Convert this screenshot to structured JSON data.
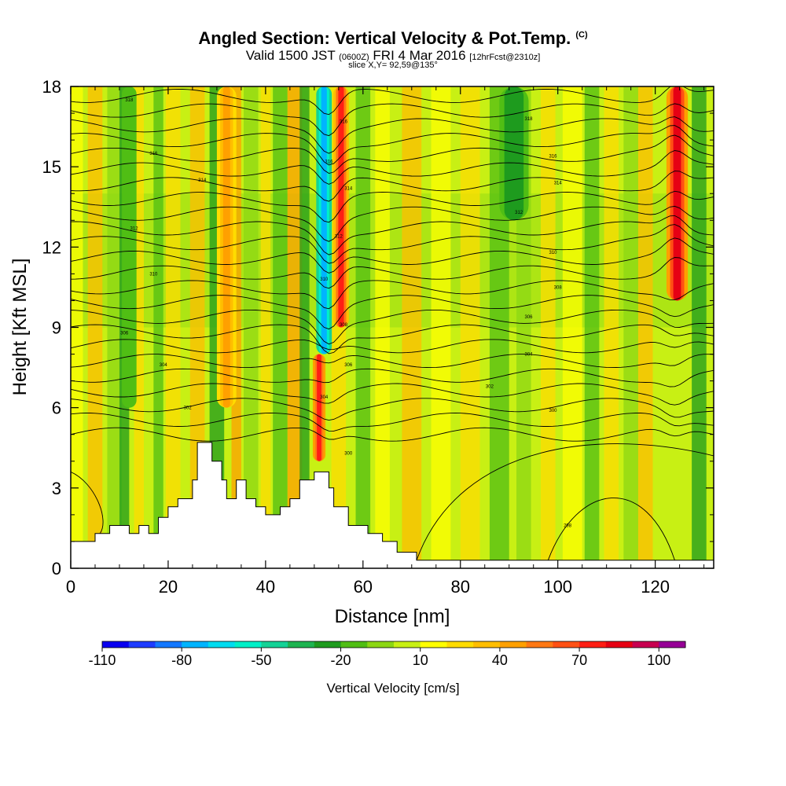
{
  "header": {
    "title_main": "Angled Section: Vertical Velocity & Pot.Temp.",
    "title_mark": "(C)",
    "valid_prefix": "Valid 1500 JST",
    "valid_utc": "(0600Z)",
    "valid_date": "FRI 4 Mar 2016",
    "fcst": "[12hrFcst@2310z]",
    "slice": "slice X,Y= 92,59@135°"
  },
  "chart_data": {
    "type": "heatmap",
    "xlabel": "Distance [nm]",
    "ylabel": "Height [Kft MSL]",
    "xlim": [
      0,
      132
    ],
    "ylim": [
      0,
      18
    ],
    "x_ticks": [
      0,
      20,
      40,
      60,
      80,
      100,
      120
    ],
    "y_ticks": [
      0,
      3,
      6,
      9,
      12,
      15,
      18
    ],
    "colorbar": {
      "label": "Vertical Velocity [cm/s]",
      "ticks": [
        -110,
        -80,
        -50,
        -20,
        10,
        40,
        70,
        100
      ],
      "levels": [
        -110,
        -100,
        -90,
        -80,
        -70,
        -60,
        -50,
        -40,
        -30,
        -20,
        -10,
        0,
        10,
        20,
        30,
        40,
        50,
        60,
        70,
        80,
        90,
        100,
        110
      ],
      "colors": [
        "#0a00f0",
        "#1e3cff",
        "#1478ff",
        "#00b4ff",
        "#00dcf0",
        "#00f0c8",
        "#14d296",
        "#1eb450",
        "#1e9b1e",
        "#50be14",
        "#8cd714",
        "#c8f014",
        "#ffff00",
        "#ffdc00",
        "#ffbe00",
        "#ffa000",
        "#ff7814",
        "#ff5014",
        "#ff1e14",
        "#e60014",
        "#c80050",
        "#960096"
      ]
    },
    "vertical_velocity_columns": [
      {
        "x": 1,
        "w": 3,
        "v": 10
      },
      {
        "x": 5,
        "w": 3,
        "v": 30
      },
      {
        "x": 9,
        "w": 3,
        "v": -10
      },
      {
        "x": 11,
        "w": 2,
        "v": -25
      },
      {
        "x": 14,
        "w": 2,
        "v": 25
      },
      {
        "x": 18,
        "w": 2,
        "v": -20
      },
      {
        "x": 21,
        "w": 3,
        "v": 20
      },
      {
        "x": 26,
        "w": 3,
        "v": 30
      },
      {
        "x": 30,
        "w": 3,
        "v": -30
      },
      {
        "x": 34,
        "w": 2,
        "v": 40
      },
      {
        "x": 37,
        "w": 3,
        "v": -5
      },
      {
        "x": 40,
        "w": 2,
        "v": 25
      },
      {
        "x": 43,
        "w": 3,
        "v": -15
      },
      {
        "x": 46,
        "w": 3,
        "v": 45
      },
      {
        "x": 48,
        "w": 2,
        "v": -25
      },
      {
        "x": 55,
        "w": 3,
        "v": 20
      },
      {
        "x": 60,
        "w": 3,
        "v": -15
      },
      {
        "x": 64,
        "w": 3,
        "v": 10
      },
      {
        "x": 70,
        "w": 4,
        "v": 30
      },
      {
        "x": 76,
        "w": 4,
        "v": 10
      },
      {
        "x": 82,
        "w": 4,
        "v": 20
      },
      {
        "x": 88,
        "w": 4,
        "v": -20
      },
      {
        "x": 93,
        "w": 3,
        "v": -5
      },
      {
        "x": 98,
        "w": 3,
        "v": 20
      },
      {
        "x": 103,
        "w": 4,
        "v": 10
      },
      {
        "x": 107,
        "w": 3,
        "v": -15
      },
      {
        "x": 111,
        "w": 3,
        "v": 25
      },
      {
        "x": 115,
        "w": 3,
        "v": -10
      },
      {
        "x": 118,
        "w": 3,
        "v": 30
      },
      {
        "x": 129,
        "w": 3,
        "v": -25
      }
    ],
    "vertical_velocity_features": [
      {
        "x_center": 52,
        "half_width": 1.6,
        "y_from": 8,
        "y_to": 18,
        "v": -75,
        "note": "downdraft core"
      },
      {
        "x_center": 55.5,
        "half_width": 1.6,
        "y_from": 9,
        "y_to": 18,
        "v": 70,
        "note": "updraft core"
      },
      {
        "x_center": 51,
        "half_width": 1.3,
        "y_from": 4,
        "y_to": 8,
        "v": 75,
        "note": "low-level updraft"
      },
      {
        "x_center": 124.5,
        "half_width": 2.2,
        "y_from": 10,
        "y_to": 18,
        "v": 85,
        "note": "updraft core"
      },
      {
        "x_center": 91,
        "half_width": 3,
        "y_from": 13,
        "y_to": 18,
        "v": -30
      },
      {
        "x_center": 32,
        "half_width": 2,
        "y_from": 6,
        "y_to": 18,
        "v": 40
      },
      {
        "x_center": 12,
        "half_width": 1.5,
        "y_from": 6,
        "y_to": 18,
        "v": -20
      }
    ],
    "terrain": [
      [
        0,
        1
      ],
      [
        5,
        1
      ],
      [
        5,
        1.3
      ],
      [
        8,
        1.3
      ],
      [
        8,
        1.6
      ],
      [
        12,
        1.6
      ],
      [
        12,
        1.3
      ],
      [
        14,
        1.3
      ],
      [
        14,
        1.6
      ],
      [
        16,
        1.6
      ],
      [
        16,
        1.3
      ],
      [
        18,
        1.3
      ],
      [
        18,
        1.9
      ],
      [
        20,
        1.9
      ],
      [
        20,
        2.3
      ],
      [
        22,
        2.3
      ],
      [
        22,
        2.6
      ],
      [
        25,
        2.6
      ],
      [
        25,
        3.3
      ],
      [
        26,
        3.3
      ],
      [
        26,
        4.7
      ],
      [
        29,
        4.7
      ],
      [
        29,
        4.0
      ],
      [
        31,
        4.0
      ],
      [
        31,
        3.3
      ],
      [
        32,
        3.3
      ],
      [
        32,
        2.6
      ],
      [
        34,
        2.6
      ],
      [
        34,
        3.3
      ],
      [
        36,
        3.3
      ],
      [
        36,
        2.6
      ],
      [
        38,
        2.6
      ],
      [
        38,
        2.3
      ],
      [
        40,
        2.3
      ],
      [
        40,
        2.0
      ],
      [
        43,
        2.0
      ],
      [
        43,
        2.3
      ],
      [
        45,
        2.3
      ],
      [
        45,
        2.6
      ],
      [
        47,
        2.6
      ],
      [
        47,
        3.3
      ],
      [
        50,
        3.3
      ],
      [
        50,
        3.6
      ],
      [
        53,
        3.6
      ],
      [
        53,
        3.0
      ],
      [
        54,
        3.0
      ],
      [
        54,
        2.3
      ],
      [
        57,
        2.3
      ],
      [
        57,
        1.6
      ],
      [
        61,
        1.6
      ],
      [
        61,
        1.3
      ],
      [
        64,
        1.3
      ],
      [
        64,
        1.0
      ],
      [
        67,
        1.0
      ],
      [
        67,
        0.6
      ],
      [
        71,
        0.6
      ],
      [
        71,
        0.3
      ],
      [
        132,
        0.3
      ]
    ],
    "theta_contour_labels": [
      {
        "x": 12,
        "y": 17.5,
        "text": "318"
      },
      {
        "x": 17,
        "y": 15.5,
        "text": "316"
      },
      {
        "x": 27,
        "y": 14.5,
        "text": "314"
      },
      {
        "x": 13,
        "y": 12.7,
        "text": "312"
      },
      {
        "x": 17,
        "y": 11.0,
        "text": "310"
      },
      {
        "x": 11,
        "y": 8.8,
        "text": "306"
      },
      {
        "x": 19,
        "y": 7.6,
        "text": "304"
      },
      {
        "x": 24,
        "y": 6.0,
        "text": "302"
      },
      {
        "x": 56,
        "y": 16.7,
        "text": "316"
      },
      {
        "x": 53,
        "y": 15.2,
        "text": "316"
      },
      {
        "x": 57,
        "y": 14.2,
        "text": "314"
      },
      {
        "x": 55,
        "y": 12.4,
        "text": "312"
      },
      {
        "x": 52,
        "y": 10.8,
        "text": "310"
      },
      {
        "x": 56,
        "y": 9.1,
        "text": "308"
      },
      {
        "x": 57,
        "y": 7.6,
        "text": "306"
      },
      {
        "x": 52,
        "y": 6.4,
        "text": "304"
      },
      {
        "x": 57,
        "y": 4.3,
        "text": "300"
      },
      {
        "x": 94,
        "y": 16.8,
        "text": "318"
      },
      {
        "x": 99,
        "y": 15.4,
        "text": "316"
      },
      {
        "x": 100,
        "y": 14.4,
        "text": "314"
      },
      {
        "x": 92,
        "y": 13.3,
        "text": "312"
      },
      {
        "x": 99,
        "y": 11.8,
        "text": "310"
      },
      {
        "x": 100,
        "y": 10.5,
        "text": "308"
      },
      {
        "x": 94,
        "y": 9.4,
        "text": "306"
      },
      {
        "x": 94,
        "y": 8.0,
        "text": "304"
      },
      {
        "x": 86,
        "y": 6.8,
        "text": "302"
      },
      {
        "x": 99,
        "y": 5.9,
        "text": "300"
      },
      {
        "x": 102,
        "y": 1.6,
        "text": "298"
      }
    ]
  }
}
